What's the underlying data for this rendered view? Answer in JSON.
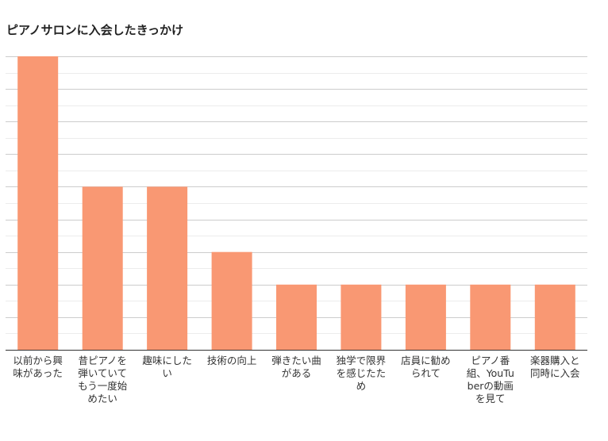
{
  "chart_data": {
    "type": "bar",
    "title": "ピアノサロンに入会したきっかけ",
    "xlabel": "",
    "ylabel": "",
    "categories": [
      "以前から興味があった",
      "昔ピアノを弾いていてもう一度始めたい",
      "趣味にしたい",
      "技術の向上",
      "弾きたい曲がある",
      "独学で限界を感じたため",
      "店員に勧められて",
      "ピアノ番組、YouTuberの動画を見て",
      "楽器購入と同時に入会"
    ],
    "values": [
      9,
      5,
      5,
      3,
      2,
      2,
      2,
      2,
      2
    ],
    "ylim": [
      0,
      9
    ],
    "grid": true,
    "legend": "none",
    "colors": {
      "bar": "#F99873",
      "grid_major": "#cccccc",
      "grid_minor": "#ececec",
      "axis": "#333333"
    }
  }
}
